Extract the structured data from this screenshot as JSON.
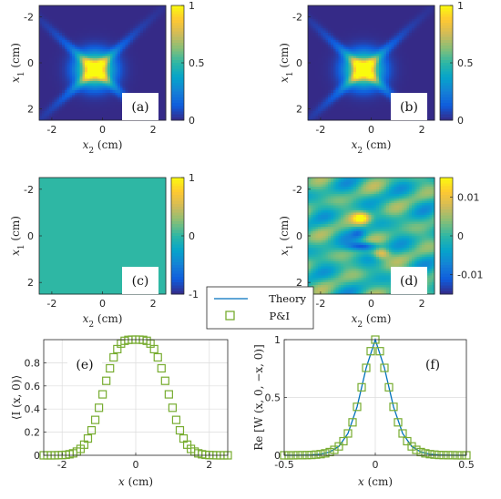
{
  "colors": {
    "parula": [
      "#352a87",
      "#0f5cdd",
      "#1481d6",
      "#06a4ca",
      "#2eb7a4",
      "#87bf77",
      "#d1bb59",
      "#fec832",
      "#f9fb0e"
    ],
    "zero_teal": "#23b6a8",
    "theory_line": "#0072bd",
    "marker": "#77ac30",
    "grid": "#dcdcdc"
  },
  "chart_data": [
    {
      "id": "a",
      "type": "heatmap",
      "panel_label": "(a)",
      "xlabel": "x_2 (cm)",
      "ylabel": "x_1 (cm)",
      "x_ticks": [
        -2,
        0,
        2
      ],
      "y_ticks": [
        -2,
        0,
        2
      ],
      "xlim": [
        -2.5,
        2.5
      ],
      "ylim": [
        -2.5,
        2.5
      ],
      "clim": [
        0,
        1
      ],
      "colorbar_ticks": [
        0,
        0.5,
        1
      ],
      "colorbar_labels": [
        "0",
        "0.5",
        "1"
      ],
      "pattern": "cross",
      "cross_center": [
        -0.3,
        0.3
      ],
      "arm_width": 0.13,
      "spread": 0.5
    },
    {
      "id": "b",
      "type": "heatmap",
      "panel_label": "(b)",
      "xlabel": "x_2 (cm)",
      "ylabel": "x_1 (cm)",
      "x_ticks": [
        -2,
        0,
        2
      ],
      "y_ticks": [
        -2,
        0,
        2
      ],
      "xlim": [
        -2.5,
        2.5
      ],
      "ylim": [
        -2.5,
        2.5
      ],
      "clim": [
        0,
        1
      ],
      "colorbar_ticks": [
        0,
        0.5,
        1
      ],
      "colorbar_labels": [
        "0",
        "0.5",
        "1"
      ],
      "pattern": "cross",
      "cross_center": [
        -0.3,
        0.3
      ],
      "arm_width": 0.13,
      "spread": 0.5
    },
    {
      "id": "c",
      "type": "heatmap",
      "panel_label": "(c)",
      "xlabel": "x_2 (cm)",
      "ylabel": "x_1 (cm)",
      "x_ticks": [
        -2,
        0,
        2
      ],
      "y_ticks": [
        -2,
        0,
        2
      ],
      "xlim": [
        -2.5,
        2.5
      ],
      "ylim": [
        -2.5,
        2.5
      ],
      "clim": [
        -1,
        1
      ],
      "colorbar_ticks": [
        -1,
        0,
        1
      ],
      "colorbar_labels": [
        "-1",
        "0",
        "1"
      ],
      "pattern": "zero"
    },
    {
      "id": "d",
      "type": "heatmap",
      "panel_label": "(d)",
      "xlabel": "x_2 (cm)",
      "ylabel": "x_1 (cm)",
      "x_ticks": [
        -2,
        0,
        2
      ],
      "y_ticks": [
        -2,
        0,
        2
      ],
      "xlim": [
        -2.5,
        2.5
      ],
      "ylim": [
        -2.5,
        2.5
      ],
      "clim": [
        -0.015,
        0.015
      ],
      "colorbar_ticks": [
        -0.01,
        0,
        0.01
      ],
      "colorbar_labels": [
        "-0.01",
        "0",
        "0.01"
      ],
      "pattern": "residual"
    },
    {
      "id": "e",
      "type": "scatter",
      "panel_label": "(e)",
      "xlabel": "x (cm)",
      "ylabel": "⟨I (x, 0)⟩",
      "xlim": [
        -2.5,
        2.5
      ],
      "ylim": [
        0,
        1
      ],
      "x_ticks": [
        -2,
        0,
        2
      ],
      "y_ticks": [
        0,
        0.2,
        0.4,
        0.6,
        0.8
      ],
      "y_tick_labels": [
        "0",
        "0.2",
        "0.4",
        "0.6",
        "0.8"
      ],
      "grid": true,
      "series": [
        {
          "name": "P&I",
          "x": [
            -2.5,
            -2.4,
            -2.3,
            -2.2,
            -2.1,
            -2.0,
            -1.9,
            -1.8,
            -1.7,
            -1.6,
            -1.5,
            -1.4,
            -1.3,
            -1.2,
            -1.1,
            -1.0,
            -0.9,
            -0.8,
            -0.7,
            -0.6,
            -0.5,
            -0.4,
            -0.3,
            -0.2,
            -0.1,
            0.0,
            0.1,
            0.2,
            0.3,
            0.4,
            0.5,
            0.6,
            0.7,
            0.8,
            0.9,
            1.0,
            1.1,
            1.2,
            1.3,
            1.4,
            1.5,
            1.6,
            1.7,
            1.8,
            1.9,
            2.0,
            2.1,
            2.2,
            2.3,
            2.4,
            2.5
          ],
          "y": [
            0.0,
            0.0,
            0.0,
            0.0,
            0.001,
            0.002,
            0.004,
            0.009,
            0.017,
            0.032,
            0.055,
            0.092,
            0.145,
            0.216,
            0.306,
            0.411,
            0.527,
            0.644,
            0.752,
            0.847,
            0.918,
            0.966,
            0.99,
            0.998,
            1.0,
            1.0,
            1.0,
            0.998,
            0.99,
            0.966,
            0.918,
            0.847,
            0.752,
            0.644,
            0.527,
            0.411,
            0.306,
            0.216,
            0.145,
            0.092,
            0.055,
            0.032,
            0.017,
            0.009,
            0.004,
            0.002,
            0.001,
            0.0,
            0.0,
            0.0,
            0.0
          ]
        }
      ]
    },
    {
      "id": "f",
      "type": "line",
      "panel_label": "(f)",
      "xlabel": "x (cm)",
      "ylabel": "Re [W (x, 0, −x, 0)]",
      "xlim": [
        -0.5,
        0.5
      ],
      "ylim": [
        0,
        1
      ],
      "x_ticks": [
        -0.5,
        0,
        0.5
      ],
      "x_tick_labels": [
        "-0.5",
        "0",
        "0.5"
      ],
      "y_ticks": [
        0,
        0.5,
        1
      ],
      "y_tick_labels": [
        "0",
        "0.5",
        "1"
      ],
      "grid": true,
      "series": [
        {
          "name": "Theory",
          "x": [
            -0.5,
            -0.45,
            -0.4,
            -0.35,
            -0.3,
            -0.25,
            -0.2,
            -0.15,
            -0.1,
            -0.05,
            0.0,
            0.05,
            0.1,
            0.15,
            0.2,
            0.25,
            0.3,
            0.35,
            0.4,
            0.45,
            0.5
          ],
          "y": [
            0.0,
            0.0,
            0.001,
            0.003,
            0.01,
            0.028,
            0.077,
            0.189,
            0.419,
            0.756,
            1.0,
            0.756,
            0.419,
            0.189,
            0.077,
            0.028,
            0.01,
            0.003,
            0.001,
            0.0,
            0.0
          ]
        },
        {
          "name": "P&I",
          "x": [
            -0.5,
            -0.475,
            -0.45,
            -0.425,
            -0.4,
            -0.375,
            -0.35,
            -0.325,
            -0.3,
            -0.275,
            -0.25,
            -0.225,
            -0.2,
            -0.175,
            -0.15,
            -0.125,
            -0.1,
            -0.075,
            -0.05,
            -0.025,
            0.0,
            0.025,
            0.05,
            0.075,
            0.1,
            0.125,
            0.15,
            0.175,
            0.2,
            0.225,
            0.25,
            0.275,
            0.3,
            0.325,
            0.35,
            0.375,
            0.4,
            0.425,
            0.45,
            0.475,
            0.5
          ],
          "y": [
            0.0,
            0.0,
            0.0,
            0.001,
            0.001,
            0.002,
            0.003,
            0.006,
            0.01,
            0.017,
            0.028,
            0.047,
            0.077,
            0.122,
            0.189,
            0.285,
            0.419,
            0.588,
            0.756,
            0.9,
            1.0,
            0.9,
            0.756,
            0.588,
            0.419,
            0.285,
            0.189,
            0.122,
            0.077,
            0.047,
            0.028,
            0.017,
            0.01,
            0.006,
            0.003,
            0.002,
            0.001,
            0.001,
            0.0,
            0.0,
            0.0
          ]
        }
      ]
    }
  ],
  "legend": {
    "entries": [
      "Theory",
      "P&I"
    ],
    "placement": "center, between rows 2 and 3"
  }
}
